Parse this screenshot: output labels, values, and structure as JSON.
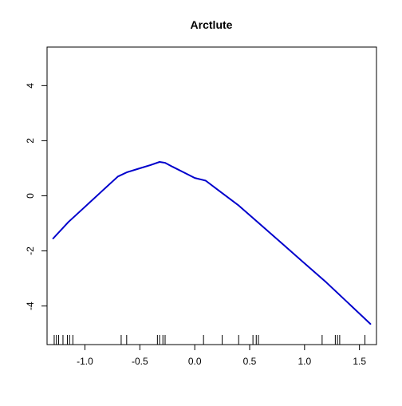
{
  "chart_data": {
    "type": "line",
    "title": "Arctlute",
    "xlabel": "",
    "ylabel": "",
    "xlim": [
      -1.345,
      1.655
    ],
    "ylim": [
      -5.4,
      5.4
    ],
    "x_ticks": [
      -1.0,
      -0.5,
      0.0,
      0.5,
      1.0,
      1.5
    ],
    "x_tick_labels": [
      "-1.0",
      "-0.5",
      "0.0",
      "0.5",
      "1.0",
      "1.5"
    ],
    "y_ticks": [
      -4,
      -2,
      0,
      2,
      4
    ],
    "y_tick_labels": [
      "-4",
      "-2",
      "0",
      "2",
      "4"
    ],
    "grid": false,
    "series": [
      {
        "color": "#0000cc",
        "x": [
          -1.29,
          -1.15,
          -1.0,
          -0.85,
          -0.7,
          -0.62,
          -0.5,
          -0.4,
          -0.32,
          -0.27,
          -0.2,
          -0.1,
          0.0,
          0.1,
          0.2,
          0.4,
          0.6,
          0.8,
          1.0,
          1.2,
          1.4,
          1.6
        ],
        "y": [
          -1.55,
          -0.95,
          -0.4,
          0.15,
          0.7,
          0.85,
          1.0,
          1.12,
          1.23,
          1.2,
          1.05,
          0.85,
          0.65,
          0.55,
          0.25,
          -0.35,
          -1.05,
          -1.75,
          -2.45,
          -3.15,
          -3.9,
          -4.65
        ]
      }
    ],
    "rug": [
      -1.28,
      -1.26,
      -1.24,
      -1.2,
      -1.16,
      -1.14,
      -1.11,
      -0.67,
      -0.62,
      -0.34,
      -0.32,
      -0.29,
      -0.27,
      0.08,
      0.25,
      0.4,
      0.53,
      0.56,
      0.58,
      1.16,
      1.28,
      1.3,
      1.32,
      1.55
    ]
  }
}
